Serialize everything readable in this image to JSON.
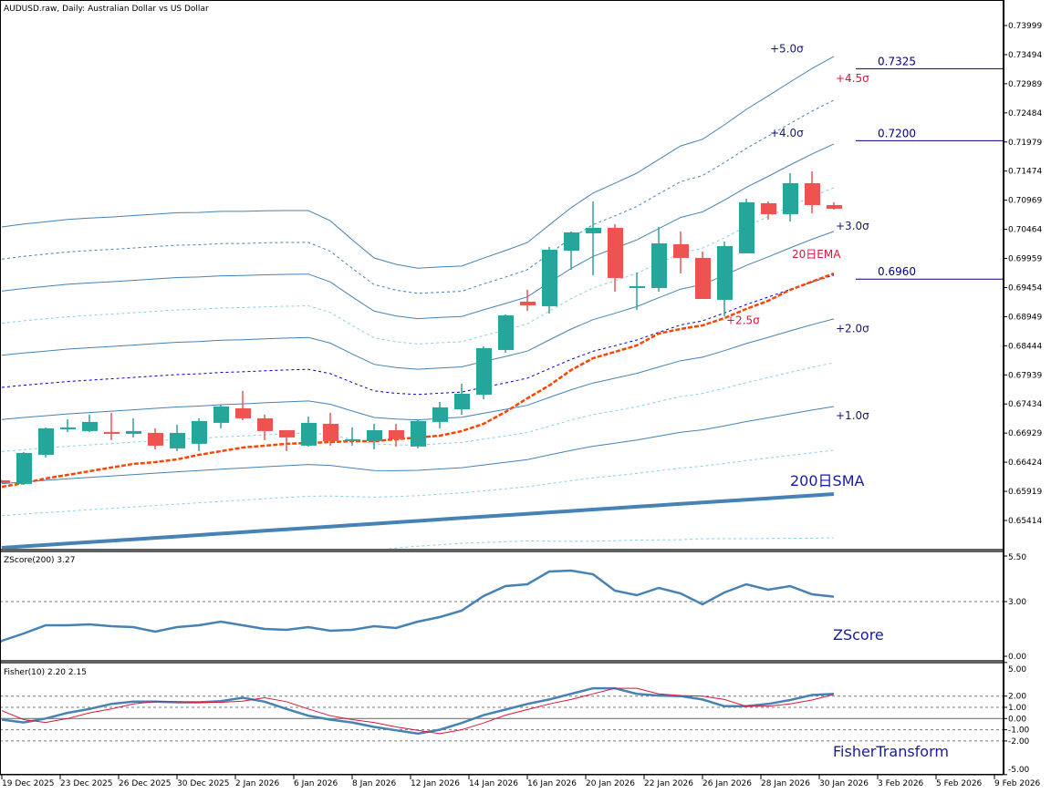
{
  "window": {
    "title": "AUDUSD.raw, Daily:  Australian Dollar vs US Dollar"
  },
  "colors": {
    "bull": "#26A69A",
    "bear": "#EF5350",
    "band_solid": "#4682B4",
    "band_half": "#87CEEB",
    "band_25": "#0000CD",
    "ema": "#FF4500",
    "sma": "#4682B4",
    "navy": "#191970",
    "crimson": "#DC143C",
    "zscore": "#4682B4",
    "fisher": "#4682B4",
    "signal": "#DC143C",
    "level": "#000080"
  },
  "chart_data": [
    {
      "type": "candlestick",
      "title": "AUDUSD.raw, Daily:  Australian Dollar vs US Dollar",
      "ylim": [
        0.651,
        0.743
      ],
      "y_ticks": [
        "0.73999",
        "0.73494",
        "0.72989",
        "0.72484",
        "0.71979",
        "0.71474",
        "0.70969",
        "0.70464",
        "0.69959",
        "0.69454",
        "0.68949",
        "0.68444",
        "0.67939",
        "0.67434",
        "0.66929",
        "0.66424",
        "0.65919",
        "0.65414"
      ],
      "x_ticks": [
        "19 Dec 2025",
        "23 Dec 2025",
        "26 Dec 2025",
        "30 Dec 2025",
        "2 Jan 2026",
        "6 Jan 2026",
        "8 Jan 2026",
        "12 Jan 2026",
        "14 Jan 2026",
        "16 Jan 2026",
        "20 Jan 2026",
        "22 Jan 2026",
        "26 Jan 2026",
        "28 Jan 2026",
        "30 Jan 2026",
        "3 Feb 2026",
        "5 Feb 2026",
        "9 Feb 2026"
      ],
      "ohlc": [
        [
          0.66111,
          0.66115,
          0.6606,
          0.66063
        ],
        [
          0.66048,
          0.66602,
          0.66032,
          0.66585
        ],
        [
          0.66553,
          0.67028,
          0.66506,
          0.67012
        ],
        [
          0.66996,
          0.6717,
          0.66949,
          0.67028
        ],
        [
          0.66965,
          0.67249,
          0.66949,
          0.67123
        ],
        [
          0.66949,
          0.67281,
          0.66807,
          0.66917
        ],
        [
          0.66917,
          0.67186,
          0.66854,
          0.66965
        ],
        [
          0.66933,
          0.67012,
          0.66649,
          0.66712
        ],
        [
          0.66664,
          0.67075,
          0.66617,
          0.66933
        ],
        [
          0.66744,
          0.67186,
          0.66617,
          0.67138
        ],
        [
          0.67107,
          0.67422,
          0.67012,
          0.67391
        ],
        [
          0.67359,
          0.6766,
          0.67154,
          0.67186
        ],
        [
          0.67186,
          0.67249,
          0.66807,
          0.66965
        ],
        [
          0.6698,
          0.6698,
          0.66617,
          0.66854
        ],
        [
          0.66712,
          0.67218,
          0.66696,
          0.67107
        ],
        [
          0.67091,
          0.67281,
          0.66712,
          0.66791
        ],
        [
          0.66791,
          0.67028,
          0.66712,
          0.66822
        ],
        [
          0.66791,
          0.67091,
          0.66649,
          0.6698
        ],
        [
          0.6698,
          0.67091,
          0.66696,
          0.66822
        ],
        [
          0.66696,
          0.6717,
          0.66664,
          0.67138
        ],
        [
          0.67123,
          0.6747,
          0.67012,
          0.67375
        ],
        [
          0.67343,
          0.67786,
          0.67249,
          0.67612
        ],
        [
          0.67596,
          0.68434,
          0.67517,
          0.68402
        ],
        [
          0.68371,
          0.68988,
          0.68324,
          0.68973
        ],
        [
          0.69209,
          0.69415,
          0.69051,
          0.69146
        ],
        [
          0.6913,
          0.70157,
          0.69004,
          0.7011
        ],
        [
          0.70094,
          0.70426,
          0.69762,
          0.7041
        ],
        [
          0.70395,
          0.70948,
          0.69667,
          0.7049
        ],
        [
          0.7049,
          0.70553,
          0.69383,
          0.6962
        ],
        [
          0.69462,
          0.69715,
          0.69068,
          0.69478
        ],
        [
          0.69446,
          0.70505,
          0.69383,
          0.70221
        ],
        [
          0.70205,
          0.70426,
          0.69699,
          0.69968
        ],
        [
          0.69968,
          0.70078,
          0.69256,
          0.69256
        ],
        [
          0.69241,
          0.70252,
          0.68957,
          0.70173
        ],
        [
          0.70047,
          0.70995,
          0.70047,
          0.70932
        ],
        [
          0.70916,
          0.70948,
          0.70632,
          0.70727
        ],
        [
          0.70727,
          0.71438,
          0.706,
          0.71264
        ],
        [
          0.71264,
          0.7147,
          0.70742,
          0.70885
        ],
        [
          0.70885,
          0.70932,
          0.70806,
          0.70822
        ]
      ],
      "sma200": [
        0.6494,
        0.64965,
        0.64989,
        0.65014,
        0.65038,
        0.65063,
        0.65087,
        0.65112,
        0.65136,
        0.65161,
        0.65186,
        0.6521,
        0.65235,
        0.65259,
        0.65284,
        0.65308,
        0.65333,
        0.65357,
        0.65382,
        0.65406,
        0.65431,
        0.65456,
        0.6548,
        0.65505,
        0.65529,
        0.65554,
        0.65578,
        0.65603,
        0.65627,
        0.65652,
        0.65677,
        0.65701,
        0.65726,
        0.6575,
        0.65775,
        0.65799,
        0.65824,
        0.65848,
        0.65873
      ],
      "sigma": [
        0.01113,
        0.01118,
        0.01121,
        0.01124,
        0.01124,
        0.01123,
        0.01123,
        0.01123,
        0.01123,
        0.01119,
        0.01118,
        0.01113,
        0.0111,
        0.01106,
        0.01101,
        0.01061,
        0.0099,
        0.00922,
        0.00895,
        0.00877,
        0.00876,
        0.00874,
        0.00897,
        0.00918,
        0.00941,
        0.00997,
        0.01052,
        0.01098,
        0.01127,
        0.01157,
        0.012,
        0.01242,
        0.0126,
        0.01305,
        0.01354,
        0.01396,
        0.01439,
        0.01481,
        0.01518
      ],
      "ema20": [
        0.65999,
        0.66063,
        0.66142,
        0.66205,
        0.66268,
        0.66332,
        0.66395,
        0.66426,
        0.66474,
        0.66553,
        0.66616,
        0.66679,
        0.66711,
        0.66743,
        0.66758,
        0.66774,
        0.6679,
        0.6679,
        0.66822,
        0.66854,
        0.66885,
        0.66964,
        0.6709,
        0.67296,
        0.67533,
        0.67755,
        0.68023,
        0.68229,
        0.68339,
        0.6845,
        0.68656,
        0.68735,
        0.68798,
        0.68924,
        0.69083,
        0.69225,
        0.69414,
        0.69557,
        0.69699
      ],
      "bands": [
        {
          "k": 5.0,
          "style": "solid"
        },
        {
          "k": 4.5,
          "style": "dash"
        },
        {
          "k": 4.0,
          "style": "solid"
        },
        {
          "k": 3.5,
          "style": "dot"
        },
        {
          "k": 3.0,
          "style": "solid"
        },
        {
          "k": 2.5,
          "style": "dash25"
        },
        {
          "k": 2.0,
          "style": "solid"
        },
        {
          "k": 1.5,
          "style": "dot"
        },
        {
          "k": 1.0,
          "style": "solid"
        },
        {
          "k": 0.5,
          "style": "dot"
        },
        {
          "k": -0.5,
          "style": "dot"
        }
      ],
      "annotations": [
        {
          "text": "+5.0σ",
          "color": "#191970",
          "price": 0.7353,
          "index": 35.0
        },
        {
          "text": "+4.5σ",
          "color": "#DC143C",
          "price": 0.7302,
          "index": 38.0
        },
        {
          "text": "+4.0σ",
          "color": "#191970",
          "price": 0.7207,
          "index": 35.0
        },
        {
          "text": "+3.0σ",
          "color": "#191970",
          "price": 0.7046,
          "index": 38.0
        },
        {
          "text": "20日EMA",
          "color": "#DC143C",
          "price": 0.6997,
          "index": 36.0
        },
        {
          "text": "+2.5σ",
          "color": "#DC143C",
          "price": 0.6882,
          "index": 33.0
        },
        {
          "text": "+2.0σ",
          "color": "#191970",
          "price": 0.6868,
          "index": 38.0
        },
        {
          "text": "+1.0σ",
          "color": "#191970",
          "price": 0.6717,
          "index": 38.0
        }
      ],
      "sma_label": "200日SMA",
      "levels": [
        {
          "price": 0.7325,
          "label": "0.7325"
        },
        {
          "price": 0.72,
          "label": "0.7200"
        },
        {
          "price": 0.696,
          "label": "0.6960"
        }
      ]
    },
    {
      "type": "line",
      "title": "ZScore(200) 3.27",
      "label": "ZScore",
      "ylim": [
        0.0,
        5.5
      ],
      "y_ticks": [
        "5.50",
        "3.00",
        "0.00"
      ],
      "level": 3.0,
      "values": [
        0.85,
        1.25,
        1.7,
        1.7,
        1.75,
        1.65,
        1.6,
        1.35,
        1.6,
        1.7,
        1.9,
        1.7,
        1.5,
        1.45,
        1.6,
        1.4,
        1.45,
        1.65,
        1.55,
        1.9,
        2.15,
        2.5,
        3.3,
        3.85,
        3.95,
        4.65,
        4.7,
        4.5,
        3.6,
        3.35,
        3.75,
        3.45,
        2.85,
        3.5,
        3.95,
        3.65,
        3.85,
        3.4,
        3.27
      ]
    },
    {
      "type": "line",
      "title": "Fisher(10) 2.20 2.15",
      "label": "FisherTransform",
      "ylim": [
        -5.0,
        5.0
      ],
      "y_ticks": [
        "5.00",
        "2.00",
        "1.00",
        "0.00",
        "-1.00",
        "-2.00",
        "-5.00"
      ],
      "levels": [
        2.0,
        1.0,
        -1.0,
        -2.0
      ],
      "series": [
        {
          "name": "Fisher",
          "values": [
            -0.1,
            -0.35,
            0.0,
            0.5,
            0.85,
            1.3,
            1.5,
            1.5,
            1.45,
            1.45,
            1.55,
            1.85,
            1.5,
            0.85,
            0.25,
            -0.1,
            -0.35,
            -0.75,
            -1.05,
            -1.35,
            -1.0,
            -0.4,
            0.3,
            0.8,
            1.3,
            1.7,
            2.2,
            2.7,
            2.7,
            2.2,
            2.05,
            2.0,
            1.7,
            1.1,
            1.1,
            1.3,
            1.65,
            2.1,
            2.2
          ]
        },
        {
          "name": "Signal",
          "values": [
            0.7,
            -0.1,
            -0.35,
            0.0,
            0.5,
            0.85,
            1.3,
            1.5,
            1.5,
            1.45,
            1.45,
            1.55,
            1.85,
            1.5,
            0.85,
            0.25,
            -0.1,
            -0.35,
            -0.75,
            -1.05,
            -1.35,
            -1.0,
            -0.4,
            0.3,
            0.8,
            1.3,
            1.7,
            2.2,
            2.7,
            2.7,
            2.2,
            2.05,
            2.0,
            1.7,
            1.1,
            1.1,
            1.3,
            1.65,
            2.15
          ]
        }
      ]
    }
  ]
}
